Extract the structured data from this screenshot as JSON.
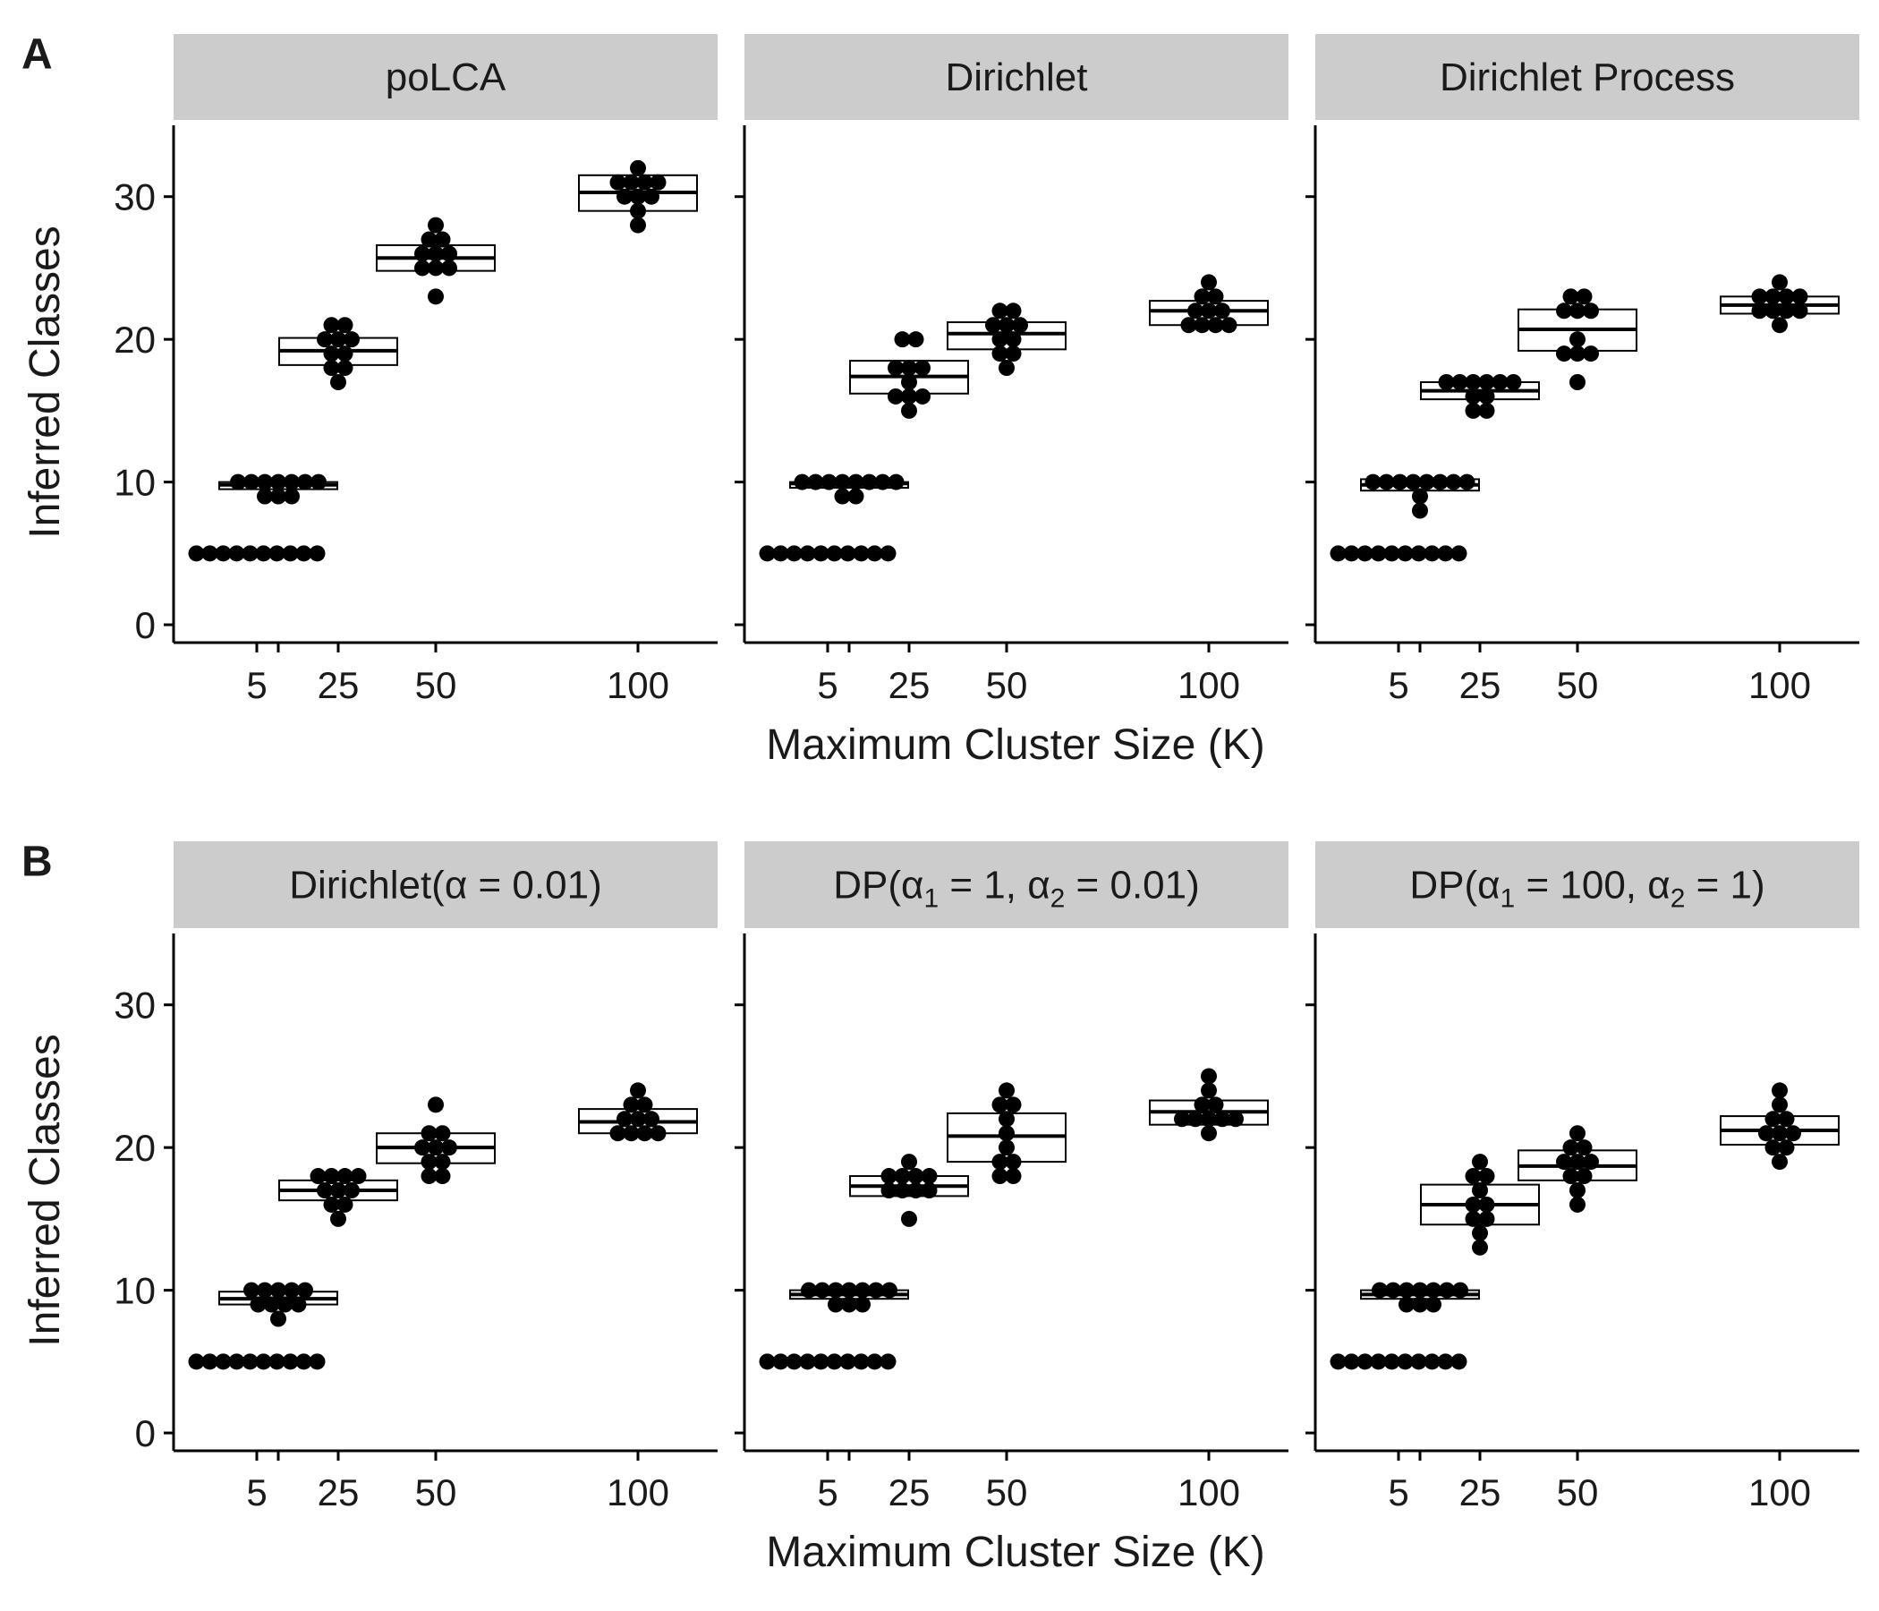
{
  "figure": {
    "y_axis_label": "Inferred Classes",
    "x_axis_label": "Maximum Cluster Size (K)"
  },
  "chart_data": [
    {
      "type": "boxplot",
      "panel_label": "A",
      "ylabel": "Inferred Classes",
      "xlabel": "Maximum Cluster Size (K)",
      "ylim": [
        -1,
        35
      ],
      "y_ticks": [
        0,
        10,
        20,
        30
      ],
      "x_ticks": [
        5,
        25,
        50,
        100
      ],
      "facets": [
        {
          "title": "poLCA",
          "groups": [
            {
              "k": 5,
              "box": [
                5,
                5,
                5
              ],
              "points": [
                5,
                5,
                5,
                5,
                5,
                5,
                5,
                5,
                5,
                5
              ]
            },
            {
              "k": 10,
              "box": [
                9.5,
                9.8,
                10
              ],
              "points": [
                10,
                10,
                10,
                9,
                10,
                9,
                10,
                9,
                10,
                10
              ]
            },
            {
              "k": 25,
              "box": [
                18.2,
                19.2,
                20.1
              ],
              "points": [
                20,
                21,
                21,
                18,
                19,
                20,
                17,
                19,
                18,
                20
              ]
            },
            {
              "k": 50,
              "box": [
                24.8,
                25.7,
                26.6
              ],
              "points": [
                25,
                27,
                26,
                28,
                25,
                23,
                26,
                27,
                25,
                26
              ]
            },
            {
              "k": 100,
              "box": [
                29.0,
                30.3,
                31.5
              ],
              "points": [
                31,
                32,
                30,
                31,
                28,
                29,
                30,
                31,
                30,
                31
              ]
            }
          ]
        },
        {
          "title": "Dirichlet",
          "groups": [
            {
              "k": 5,
              "box": [
                5,
                5,
                5
              ],
              "points": [
                5,
                5,
                5,
                5,
                5,
                5,
                5,
                5,
                5,
                5
              ]
            },
            {
              "k": 10,
              "box": [
                9.6,
                9.9,
                10
              ],
              "points": [
                10,
                10,
                10,
                9,
                10,
                9,
                10,
                10,
                10,
                10
              ]
            },
            {
              "k": 25,
              "box": [
                16.2,
                17.4,
                18.5
              ],
              "points": [
                18,
                20,
                20,
                16,
                16,
                15,
                18,
                17,
                16,
                18
              ]
            },
            {
              "k": 50,
              "box": [
                19.3,
                20.4,
                21.2
              ],
              "points": [
                21,
                22,
                22,
                18,
                19,
                20,
                21,
                20,
                19,
                21
              ]
            },
            {
              "k": 100,
              "box": [
                21.0,
                22.0,
                22.7
              ],
              "points": [
                23,
                24,
                22,
                21,
                21,
                22,
                21,
                22,
                23,
                21
              ]
            }
          ]
        },
        {
          "title": "Dirichlet Process",
          "groups": [
            {
              "k": 5,
              "box": [
                5,
                5,
                5
              ],
              "points": [
                5,
                5,
                5,
                5,
                5,
                5,
                5,
                5,
                5,
                5
              ]
            },
            {
              "k": 10,
              "box": [
                9.4,
                9.8,
                10.2
              ],
              "points": [
                10,
                10,
                10,
                8,
                10,
                9,
                10,
                10,
                10,
                10
              ]
            },
            {
              "k": 25,
              "box": [
                15.8,
                16.4,
                17.0
              ],
              "points": [
                17,
                17,
                17,
                15,
                15,
                16,
                17,
                17,
                16,
                17
              ]
            },
            {
              "k": 50,
              "box": [
                19.2,
                20.7,
                22.1
              ],
              "points": [
                22,
                23,
                23,
                19,
                19,
                17,
                20,
                22,
                19,
                22
              ]
            },
            {
              "k": 100,
              "box": [
                21.8,
                22.4,
                23.0
              ],
              "points": [
                23,
                24,
                22,
                23,
                22,
                21,
                23,
                22,
                23,
                22
              ]
            }
          ]
        }
      ]
    },
    {
      "type": "boxplot",
      "panel_label": "B",
      "ylabel": "Inferred Classes",
      "xlabel": "Maximum Cluster Size (K)",
      "ylim": [
        -1,
        35
      ],
      "y_ticks": [
        0,
        10,
        20,
        30
      ],
      "x_ticks": [
        5,
        25,
        50,
        100
      ],
      "facets": [
        {
          "title_parts": [
            "Dirichlet(",
            "α",
            "",
            " = 0.01)"
          ],
          "groups": [
            {
              "k": 5,
              "box": [
                5,
                5,
                5
              ],
              "points": [
                5,
                5,
                5,
                5,
                5,
                5,
                5,
                5,
                5,
                5
              ]
            },
            {
              "k": 10,
              "box": [
                9.0,
                9.4,
                9.9
              ],
              "points": [
                10,
                10,
                10,
                9,
                10,
                9,
                8,
                9,
                10,
                9
              ]
            },
            {
              "k": 25,
              "box": [
                16.3,
                17.0,
                17.7
              ],
              "points": [
                18,
                18,
                18,
                16,
                17,
                16,
                15,
                17,
                18,
                17
              ]
            },
            {
              "k": 50,
              "box": [
                18.9,
                20.0,
                21.0
              ],
              "points": [
                20,
                23,
                21,
                18,
                18,
                19,
                20,
                21,
                19,
                20
              ]
            },
            {
              "k": 100,
              "box": [
                21.0,
                21.8,
                22.7
              ],
              "points": [
                23,
                24,
                22,
                21,
                21,
                22,
                21,
                22,
                23,
                21
              ]
            }
          ]
        },
        {
          "title_parts": [
            "DP(",
            "α",
            "1",
            " = 1, ",
            "α",
            "2",
            " = 0.01)"
          ],
          "groups": [
            {
              "k": 5,
              "box": [
                5,
                5,
                5
              ],
              "points": [
                5,
                5,
                5,
                5,
                5,
                5,
                5,
                5,
                5,
                5
              ]
            },
            {
              "k": 10,
              "box": [
                9.4,
                9.7,
                10.0
              ],
              "points": [
                10,
                10,
                10,
                9,
                10,
                9,
                10,
                9,
                10,
                10
              ]
            },
            {
              "k": 25,
              "box": [
                16.6,
                17.3,
                18.0
              ],
              "points": [
                18,
                19,
                18,
                17,
                17,
                15,
                17,
                18,
                17,
                18
              ]
            },
            {
              "k": 50,
              "box": [
                19.0,
                20.8,
                22.4
              ],
              "points": [
                23,
                24,
                22,
                18,
                18,
                19,
                20,
                21,
                19,
                23
              ]
            },
            {
              "k": 100,
              "box": [
                21.6,
                22.5,
                23.3
              ],
              "points": [
                23,
                25,
                24,
                22,
                22,
                21,
                22,
                23,
                22,
                22
              ]
            }
          ]
        },
        {
          "title_parts": [
            "DP(",
            "α",
            "1",
            " = 100, ",
            "α",
            "2",
            " = 1)"
          ],
          "groups": [
            {
              "k": 5,
              "box": [
                5,
                5,
                5
              ],
              "points": [
                5,
                5,
                5,
                5,
                5,
                5,
                5,
                5,
                5,
                5
              ]
            },
            {
              "k": 10,
              "box": [
                9.4,
                9.7,
                10.0
              ],
              "points": [
                10,
                10,
                10,
                9,
                10,
                9,
                10,
                9,
                10,
                10
              ]
            },
            {
              "k": 25,
              "box": [
                14.6,
                16.0,
                17.4
              ],
              "points": [
                18,
                19,
                18,
                15,
                14,
                13,
                16,
                17,
                15,
                16
              ]
            },
            {
              "k": 50,
              "box": [
                17.7,
                18.7,
                19.8
              ],
              "points": [
                20,
                21,
                20,
                17,
                18,
                16,
                19,
                19,
                18,
                19
              ]
            },
            {
              "k": 100,
              "box": [
                20.2,
                21.2,
                22.2
              ],
              "points": [
                22,
                24,
                23,
                21,
                20,
                19,
                21,
                22,
                20,
                21
              ]
            }
          ]
        }
      ]
    }
  ]
}
